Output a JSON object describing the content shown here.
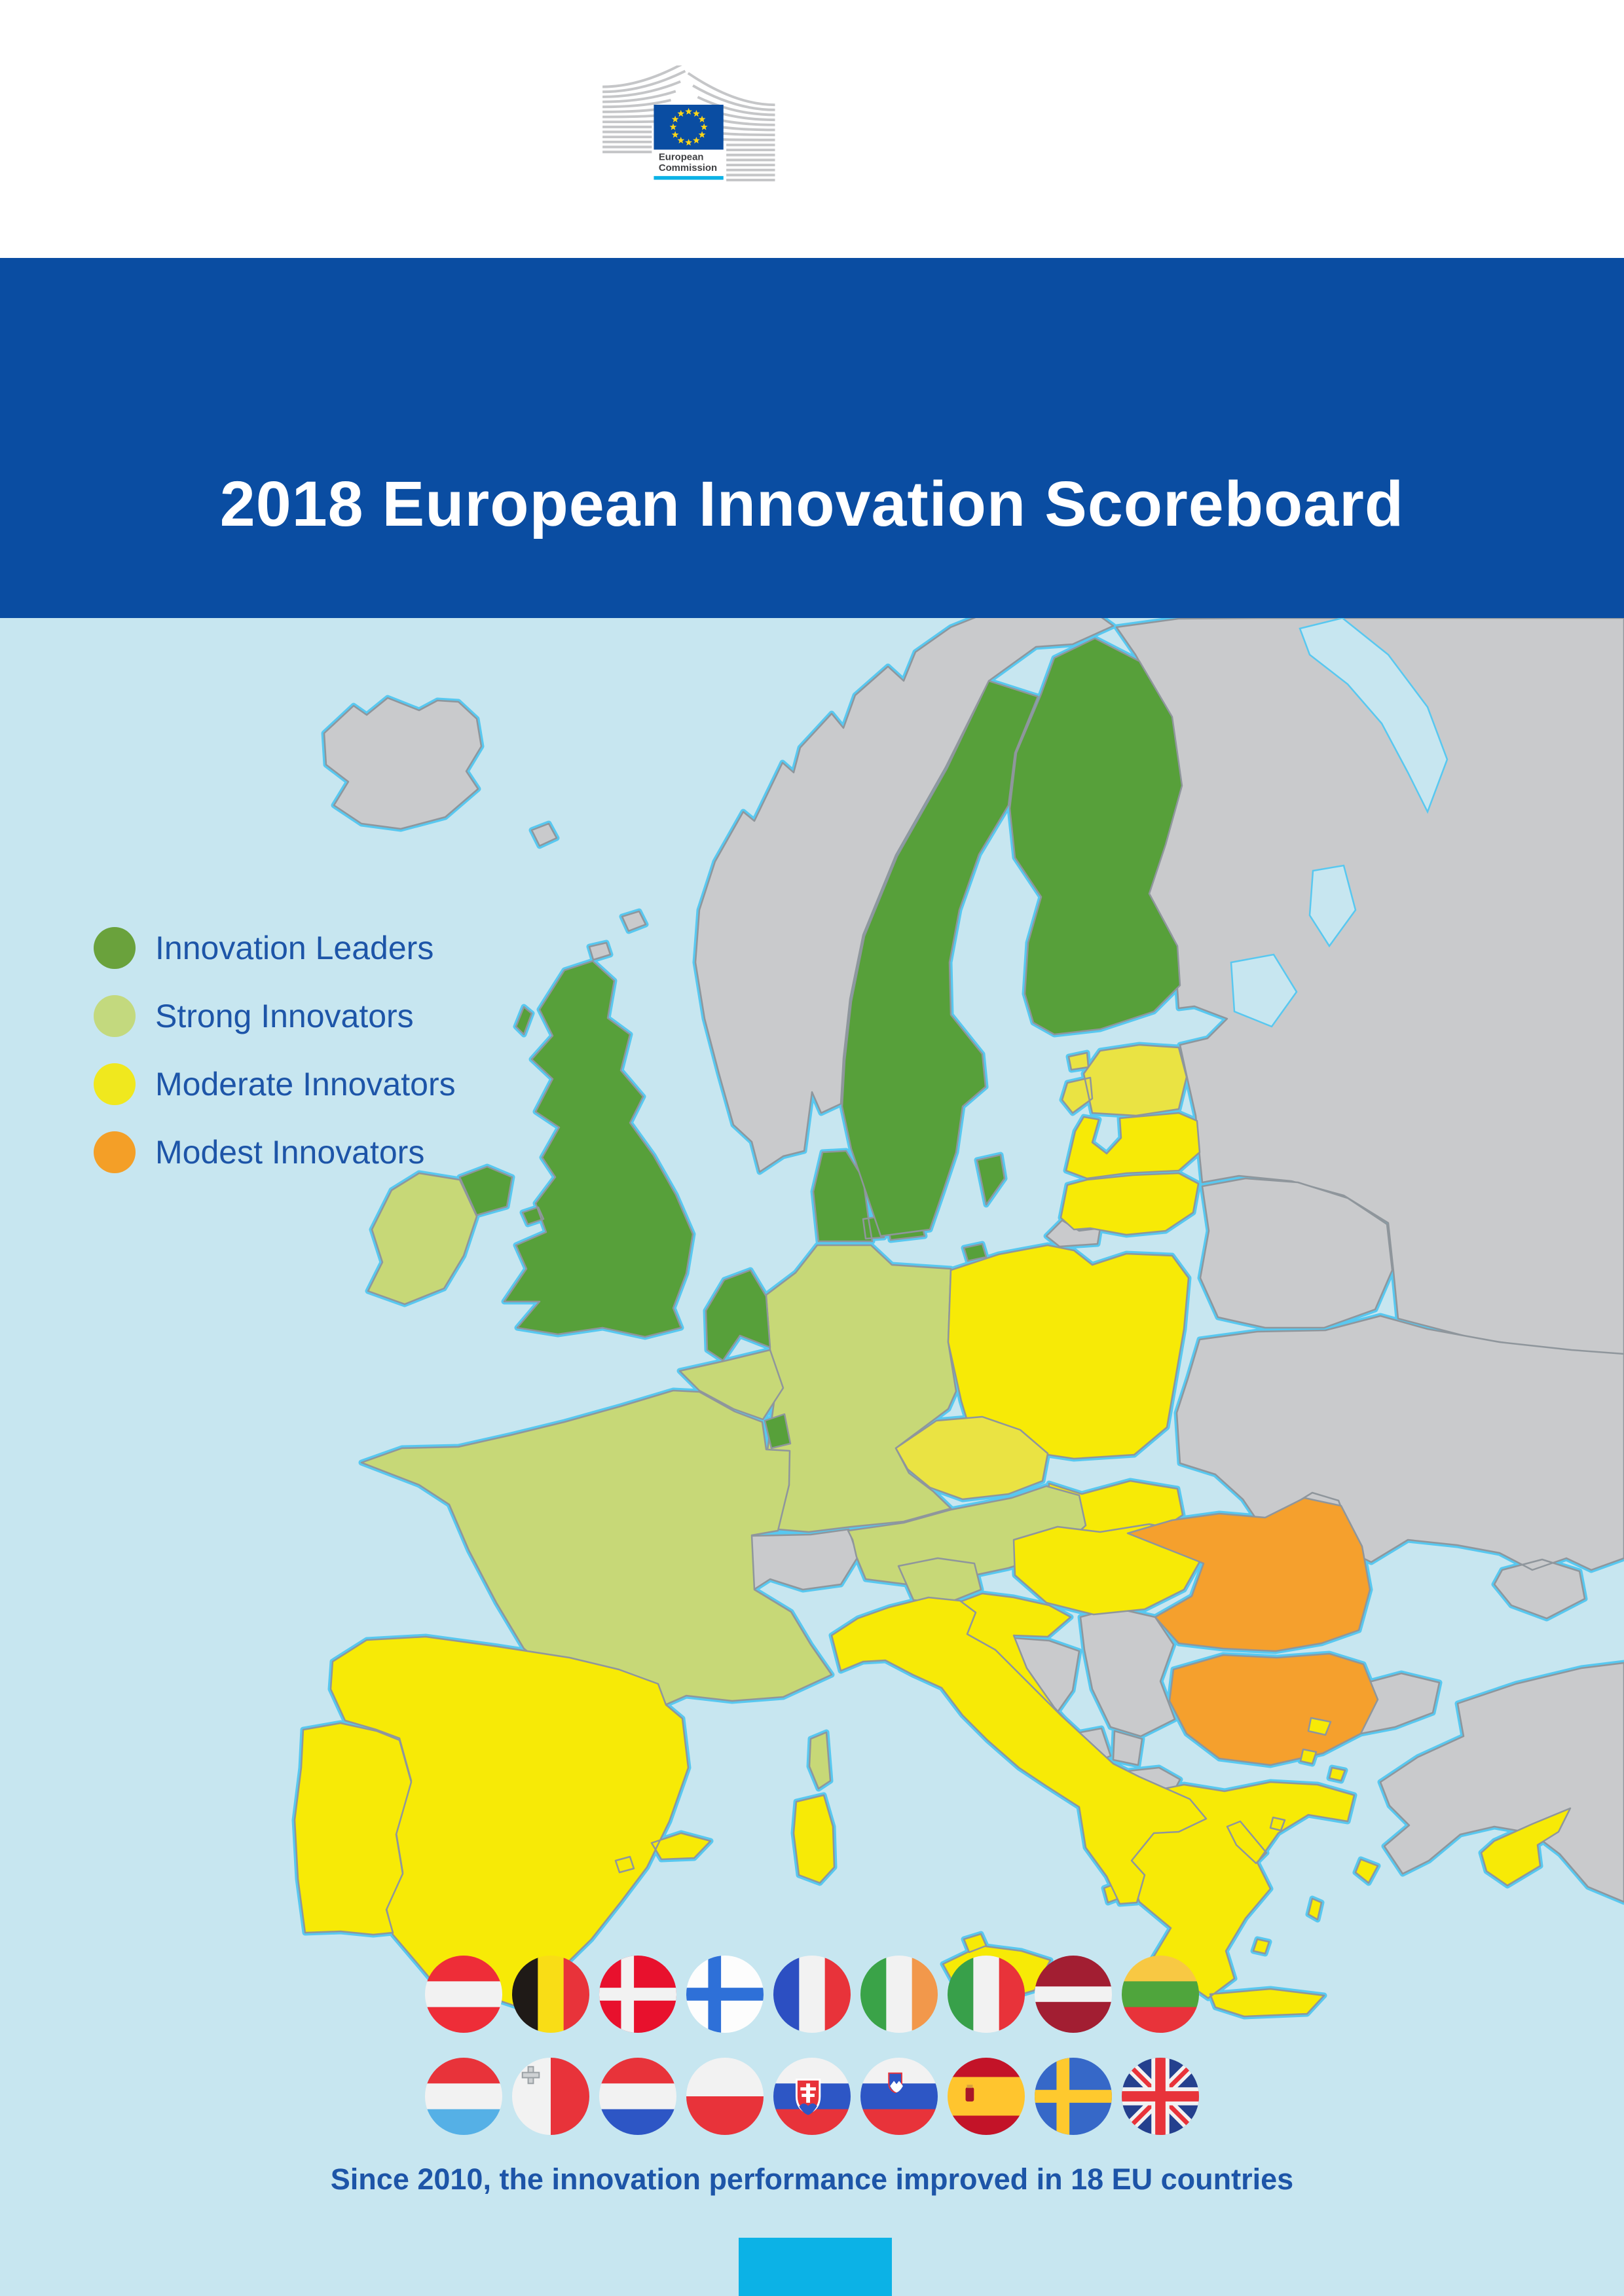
{
  "logo": {
    "line1": "European",
    "line2": "Commission"
  },
  "title": "2018 European Innovation Scoreboard",
  "legend": {
    "items": [
      {
        "label": "Innovation Leaders",
        "color": "#6aa23c"
      },
      {
        "label": "Strong Innovators",
        "color": "#c3d97e"
      },
      {
        "label": "Moderate Innovators",
        "color": "#f0e81e"
      },
      {
        "label": "Modest Innovators",
        "color": "#f49f27"
      }
    ]
  },
  "map": {
    "colors": {
      "leaders": "#57a03a",
      "strong": "#c7d877",
      "moderate": "#f7ea06",
      "moderate_light": "#eae343",
      "modest": "#f5a02d",
      "non_eu": "#c9cacc",
      "sea": "#c7e6f0",
      "coastline": "#58c8f0",
      "border": "#8f969c"
    },
    "classification": {
      "innovation_leaders": [
        "Denmark",
        "Finland",
        "Luxembourg",
        "Netherlands",
        "Sweden",
        "United Kingdom"
      ],
      "strong_innovators": [
        "Austria",
        "Belgium",
        "France",
        "Germany",
        "Ireland",
        "Slovenia"
      ],
      "moderate_innovators": [
        "Croatia",
        "Cyprus",
        "Czech Republic",
        "Estonia",
        "Greece",
        "Hungary",
        "Italy",
        "Latvia",
        "Lithuania",
        "Malta",
        "Poland",
        "Portugal",
        "Slovakia",
        "Spain"
      ],
      "modest_innovators": [
        "Bulgaria",
        "Romania"
      ]
    },
    "lighter_moderate_countries": [
      "Estonia",
      "Czech Republic"
    ]
  },
  "flags_row1": [
    "Austria",
    "Belgium",
    "Denmark",
    "Finland",
    "France",
    "Ireland",
    "Italy",
    "Latvia",
    "Lithuania"
  ],
  "flags_row2": [
    "Luxembourg",
    "Malta",
    "Netherlands",
    "Poland",
    "Slovakia",
    "Slovenia",
    "Spain",
    "Sweden",
    "United Kingdom"
  ],
  "footer": {
    "message": "Since 2010, the innovation performance improved in 18 EU countries"
  }
}
